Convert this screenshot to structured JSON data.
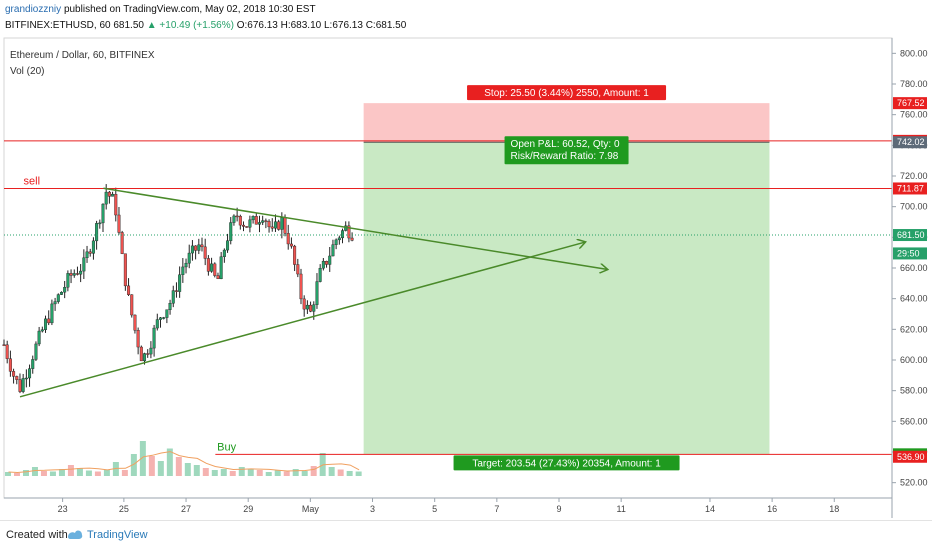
{
  "header": {
    "author": "grandiozzniy",
    "published": "published on TradingView.com, May 02, 2018 10:30 EST",
    "symbol_line_prefix": "BITFINEX:ETHUSD, 60 681.50",
    "change": "+10.49 (+1.56%)",
    "ohlc": "O:676.13 H:683.10 L:676.13 C:681.50"
  },
  "pane": {
    "title": "Ethereum / Dollar, 60, BITFINEX",
    "indicator": "Vol (20)"
  },
  "footer": {
    "created": "Created with",
    "brand": "TradingView"
  },
  "colors": {
    "up": "#26a069",
    "down": "#ee5350",
    "trendline": "#4a8a2a",
    "stop_zone": "#fbc6c6",
    "target_zone": "#c9e9c4",
    "red_label": "#e82020",
    "green_label": "#1f9a1f",
    "axis_label": "#5d6a78"
  },
  "chart_data": {
    "type": "candlestick",
    "title": "Ethereum / Dollar, 60, BITFINEX",
    "y_axis": {
      "min": 510,
      "max": 810,
      "ticks": [
        800,
        780,
        760,
        740,
        720,
        700,
        680,
        660,
        640,
        620,
        600,
        580,
        560,
        540,
        520
      ]
    },
    "x_axis": {
      "tick_labels": [
        "23",
        "25",
        "27",
        "29",
        "May",
        "3",
        "5",
        "7",
        "9",
        "11",
        "14",
        "16",
        "18"
      ]
    },
    "price_labels": [
      {
        "value": 767.52,
        "text": "767.52",
        "color": "#e82020"
      },
      {
        "value": 742.91,
        "text": "742.91",
        "color": "#e82020"
      },
      {
        "value": 742.02,
        "text": "742.02",
        "color": "#5d6a78"
      },
      {
        "value": 711.87,
        "text": "711.87",
        "color": "#e82020"
      },
      {
        "value": 681.5,
        "text": "681.50",
        "color": "#26a069"
      },
      {
        "value": 669.5,
        "text": "29:50",
        "color": "#26a069"
      },
      {
        "value": 538.48,
        "text": "538.48",
        "color": "#1f9a1f"
      },
      {
        "value": 536.9,
        "text": "536.90",
        "color": "#e82020"
      }
    ],
    "horizontal_lines": [
      {
        "value": 742.91,
        "color": "#e82020"
      },
      {
        "value": 711.87,
        "color": "#e82020",
        "label": "sell"
      },
      {
        "value": 538.48,
        "color": "#e82020",
        "label": "Buy"
      }
    ],
    "position": {
      "entry": 742.02,
      "stop": 767.52,
      "target": 538.48,
      "stop_label": "Stop: 25.50 (3.44%) 2550, Amount: 1",
      "pnl_label_1": "Open P&L: 60.52, Qty: 0",
      "pnl_label_2": "Risk/Reward Ratio: 7.98",
      "target_label": "Target: 203.54 (27.43%) 20354, Amount: 1"
    },
    "trendlines": [
      {
        "from": {
          "x": 0.112,
          "y": 712
        },
        "to": {
          "x": 0.68,
          "y": 659
        },
        "arrow": true
      },
      {
        "from": {
          "x": 0.018,
          "y": 576
        },
        "to": {
          "x": 0.655,
          "y": 677
        },
        "arrow": true
      }
    ],
    "price_path": [
      [
        0.0,
        610
      ],
      [
        0.012,
        588
      ],
      [
        0.018,
        582
      ],
      [
        0.03,
        600
      ],
      [
        0.045,
        622
      ],
      [
        0.06,
        640
      ],
      [
        0.075,
        655
      ],
      [
        0.09,
        662
      ],
      [
        0.105,
        688
      ],
      [
        0.115,
        710
      ],
      [
        0.125,
        702
      ],
      [
        0.132,
        670
      ],
      [
        0.14,
        640
      ],
      [
        0.148,
        618
      ],
      [
        0.156,
        600
      ],
      [
        0.165,
        612
      ],
      [
        0.175,
        628
      ],
      [
        0.19,
        640
      ],
      [
        0.2,
        660
      ],
      [
        0.21,
        668
      ],
      [
        0.22,
        675
      ],
      [
        0.232,
        660
      ],
      [
        0.24,
        650
      ],
      [
        0.25,
        678
      ],
      [
        0.262,
        695
      ],
      [
        0.272,
        688
      ],
      [
        0.282,
        690
      ],
      [
        0.292,
        696
      ],
      [
        0.302,
        682
      ],
      [
        0.312,
        692
      ],
      [
        0.322,
        676
      ],
      [
        0.335,
        640
      ],
      [
        0.345,
        630
      ],
      [
        0.355,
        655
      ],
      [
        0.365,
        667
      ],
      [
        0.375,
        680
      ],
      [
        0.385,
        686
      ],
      [
        0.392,
        683
      ]
    ],
    "volume": {
      "max": 80,
      "bars": [
        8,
        6,
        12,
        18,
        10,
        9,
        14,
        22,
        16,
        11,
        9,
        13,
        28,
        12,
        44,
        70,
        40,
        30,
        55,
        38,
        26,
        22,
        16,
        12,
        14,
        10,
        18,
        15,
        12,
        8,
        11,
        9,
        14,
        10,
        20,
        46,
        18,
        13,
        10,
        9
      ]
    }
  }
}
